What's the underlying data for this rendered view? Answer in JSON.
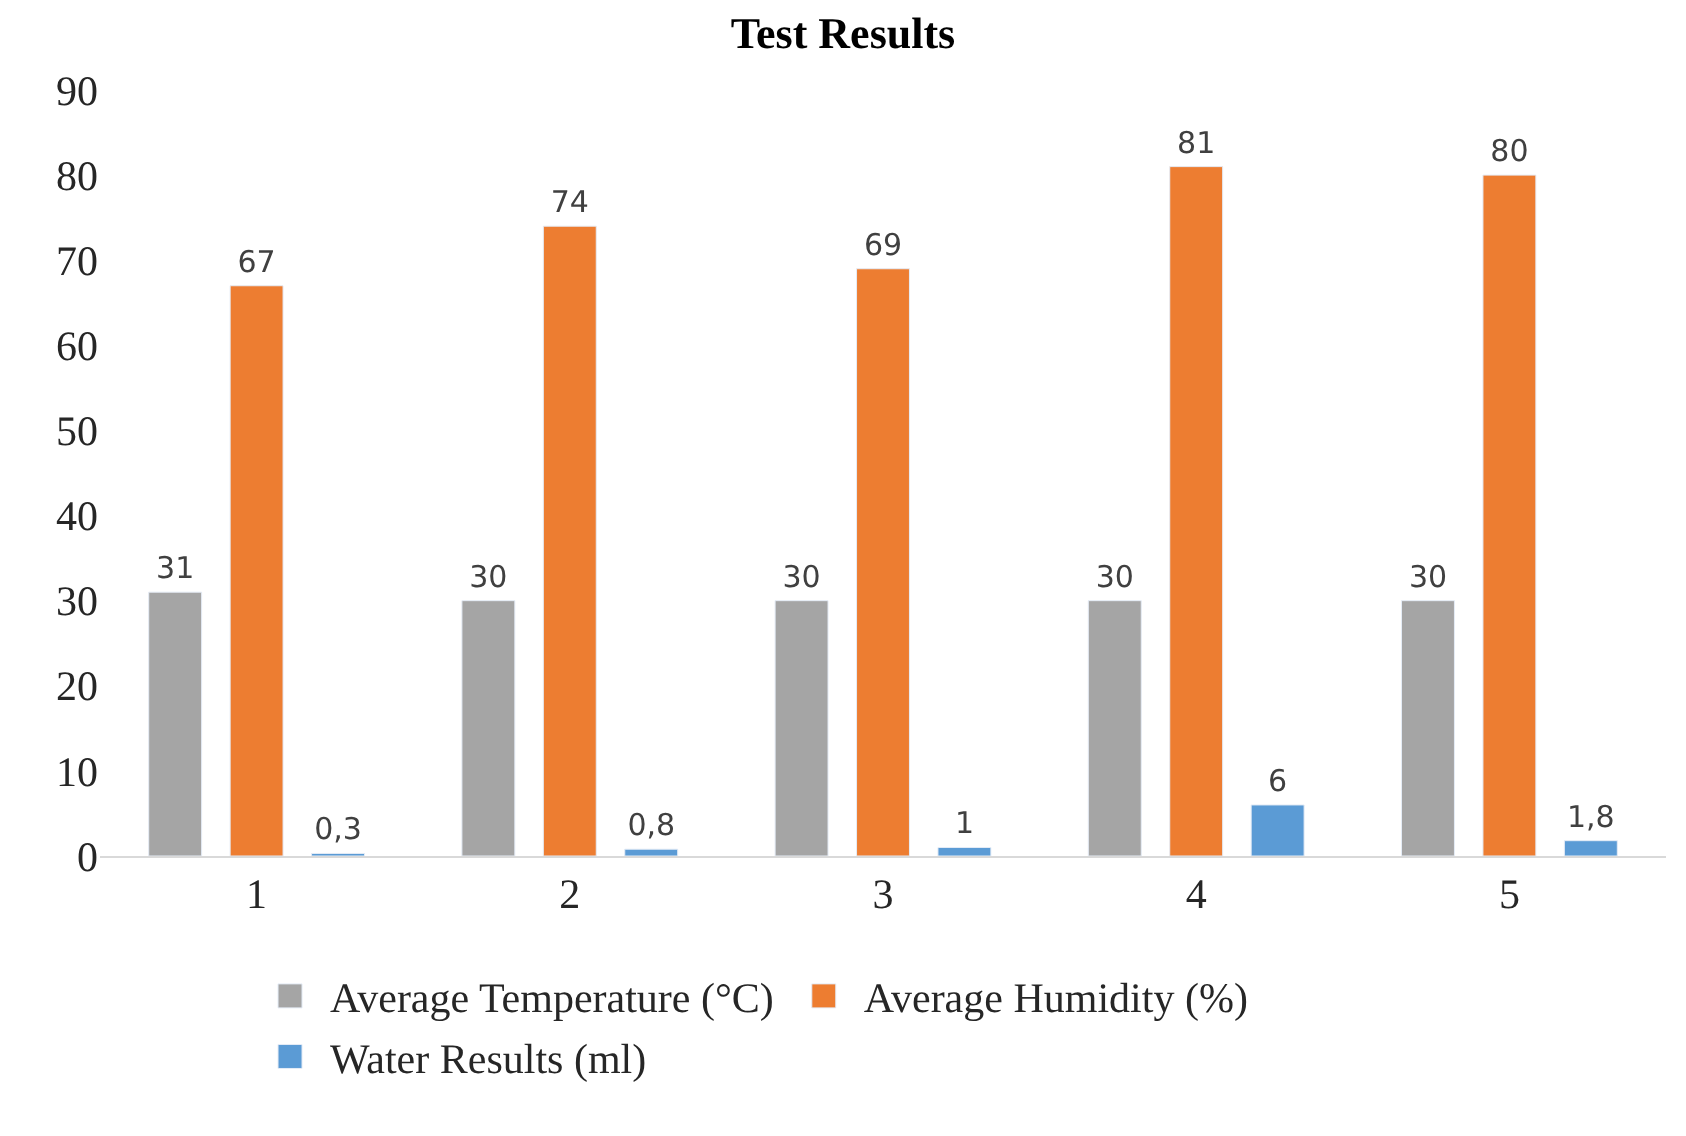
{
  "chart_data": {
    "type": "bar",
    "title": "Test Results",
    "categories": [
      "1",
      "2",
      "3",
      "4",
      "5"
    ],
    "series": [
      {
        "name": "Average Temperature (°C)",
        "color": "#a5a5a5",
        "values": [
          31,
          30,
          30,
          30,
          30
        ],
        "value_labels": [
          "31",
          "30",
          "30",
          "30",
          "30"
        ]
      },
      {
        "name": "Average Humidity (%)",
        "color": "#ed7d31",
        "values": [
          67,
          74,
          69,
          81,
          80
        ],
        "value_labels": [
          "67",
          "74",
          "69",
          "81",
          "80"
        ]
      },
      {
        "name": "Water Results (ml)",
        "color": "#5b9bd5",
        "values": [
          0.3,
          0.8,
          1,
          6,
          1.8
        ],
        "value_labels": [
          "0,3",
          "0,8",
          "1",
          "6",
          "1,8"
        ]
      }
    ],
    "ylim": [
      0,
      90
    ],
    "yticks": [
      0,
      10,
      20,
      30,
      40,
      50,
      60,
      70,
      80,
      90
    ],
    "grid": false,
    "legend": "bottom"
  }
}
